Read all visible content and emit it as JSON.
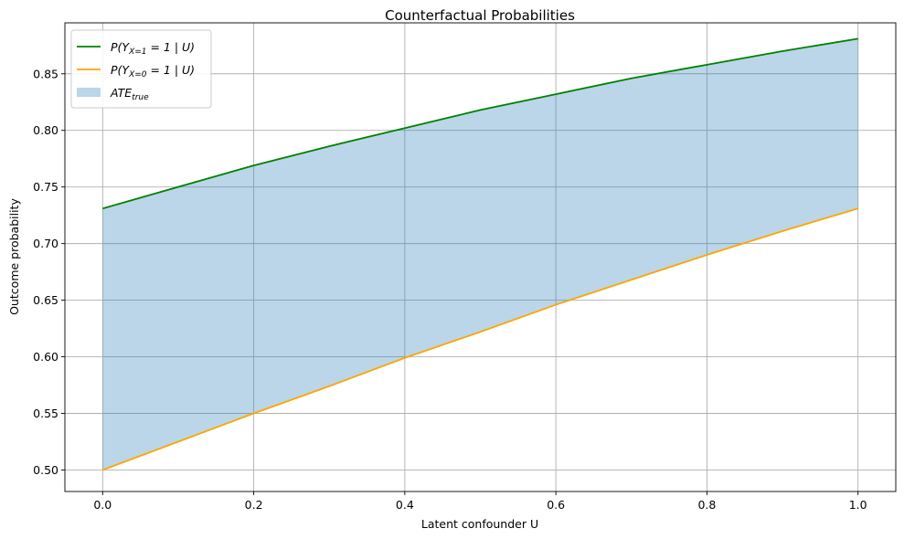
{
  "chart_data": {
    "type": "line",
    "title": "Counterfactual Probabilities",
    "xlabel": "Latent confounder U",
    "ylabel": "Outcome probability",
    "xlim": [
      -0.05,
      1.05
    ],
    "ylim": [
      0.481,
      0.895
    ],
    "x_ticks": [
      "0.0",
      "0.2",
      "0.4",
      "0.6",
      "0.8",
      "1.0"
    ],
    "x_tick_values": [
      0,
      0.2,
      0.4,
      0.6,
      0.8,
      1.0
    ],
    "y_ticks": [
      "0.50",
      "0.55",
      "0.60",
      "0.65",
      "0.70",
      "0.75",
      "0.80",
      "0.85"
    ],
    "y_tick_values": [
      0.5,
      0.55,
      0.6,
      0.65,
      0.7,
      0.75,
      0.8,
      0.85
    ],
    "grid": true,
    "legend_position": "top-left",
    "x": [
      0,
      0.1,
      0.2,
      0.3,
      0.4,
      0.5,
      0.6,
      0.7,
      0.8,
      0.9,
      1.0
    ],
    "series": [
      {
        "name": "P(Y_{X=1} = 1 | U)",
        "legend_main": "P(Y",
        "legend_sub": "X=1",
        "legend_rest": " = 1 | U)",
        "color": "#008000",
        "values": [
          0.731,
          0.75,
          0.769,
          0.786,
          0.802,
          0.818,
          0.832,
          0.846,
          0.858,
          0.87,
          0.881
        ]
      },
      {
        "name": "P(Y_{X=0} = 1 | U)",
        "legend_main": "P(Y",
        "legend_sub": "X=0",
        "legend_rest": " = 1 | U)",
        "color": "#FFA500",
        "values": [
          0.5,
          0.525,
          0.55,
          0.574,
          0.599,
          0.622,
          0.646,
          0.668,
          0.69,
          0.711,
          0.731
        ]
      }
    ],
    "fill": {
      "name": "ATE_true",
      "legend_main": "ATE",
      "legend_sub": "true",
      "color": "#1f77b4",
      "opacity": 0.3
    }
  }
}
